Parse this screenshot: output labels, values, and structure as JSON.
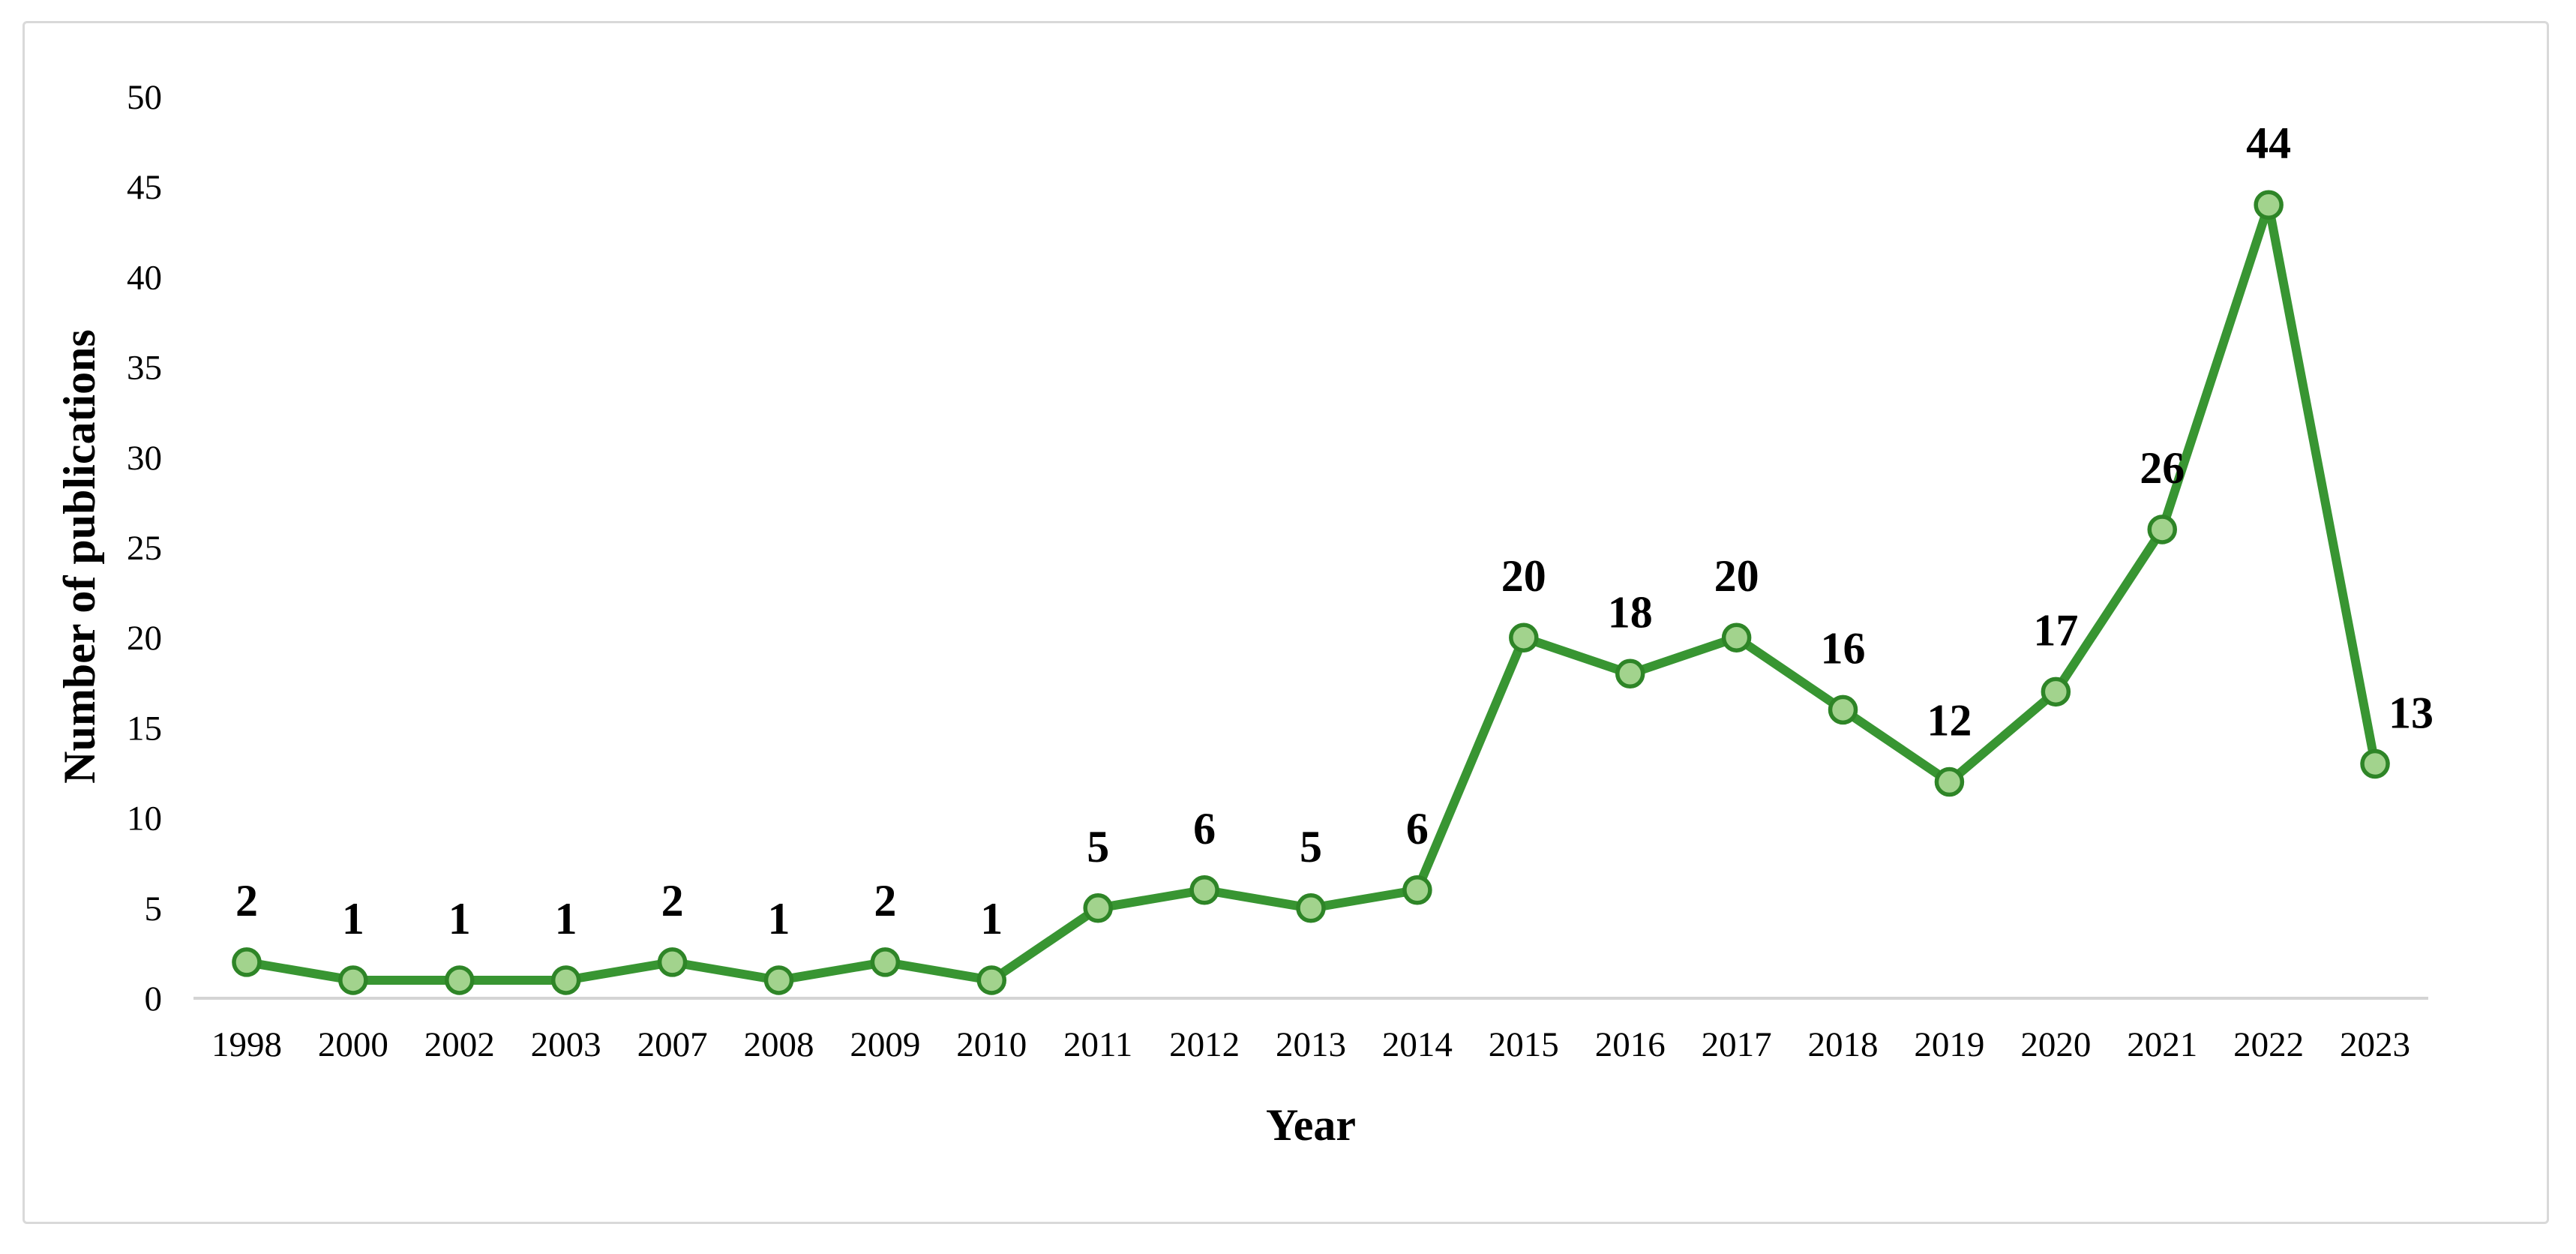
{
  "figure": {
    "background_color": "#ffffff",
    "border_color": "#d9d9d9"
  },
  "chart_data": {
    "type": "line",
    "title": "",
    "xlabel": "Year",
    "ylabel": "Number of publications",
    "categories": [
      "1998",
      "2000",
      "2002",
      "2003",
      "2007",
      "2008",
      "2009",
      "2010",
      "2011",
      "2012",
      "2013",
      "2014",
      "2015",
      "2016",
      "2017",
      "2018",
      "2019",
      "2020",
      "2021",
      "2022",
      "2023"
    ],
    "values": [
      2,
      1,
      1,
      1,
      2,
      1,
      2,
      1,
      5,
      6,
      5,
      6,
      20,
      18,
      20,
      16,
      12,
      17,
      26,
      44,
      13
    ],
    "data_labels_visible": true,
    "ylim": [
      0,
      50
    ],
    "yticks": [
      0,
      5,
      10,
      15,
      20,
      25,
      30,
      35,
      40,
      45,
      50
    ],
    "grid": false,
    "legend_position": "none",
    "marker_shape": "circle",
    "colors": {
      "line": "#389532",
      "marker_fill": "#a2d38d",
      "marker_stroke": "#2e8527",
      "axis_line": "#d4d4d4",
      "text": "#000000"
    }
  }
}
